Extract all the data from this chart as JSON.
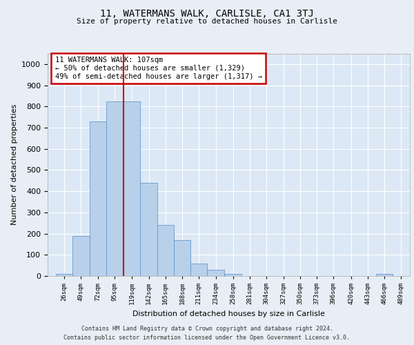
{
  "title": "11, WATERMANS WALK, CARLISLE, CA1 3TJ",
  "subtitle": "Size of property relative to detached houses in Carlisle",
  "xlabel": "Distribution of detached houses by size in Carlisle",
  "ylabel": "Number of detached properties",
  "footer_line1": "Contains HM Land Registry data © Crown copyright and database right 2024.",
  "footer_line2": "Contains public sector information licensed under the Open Government Licence v3.0.",
  "bar_color": "#b8d0ea",
  "bar_edge_color": "#6699cc",
  "background_color": "#dce8f5",
  "fig_background_color": "#e8eef5",
  "grid_color": "#ffffff",
  "annotation_text": "11 WATERMANS WALK: 107sqm\n← 50% of detached houses are smaller (1,329)\n49% of semi-detached houses are larger (1,317) →",
  "property_line_x": 107,
  "categories": [
    "26sqm",
    "49sqm",
    "72sqm",
    "95sqm",
    "119sqm",
    "142sqm",
    "165sqm",
    "188sqm",
    "211sqm",
    "234sqm",
    "258sqm",
    "281sqm",
    "304sqm",
    "327sqm",
    "350sqm",
    "373sqm",
    "396sqm",
    "420sqm",
    "443sqm",
    "466sqm",
    "489sqm"
  ],
  "bin_centers": [
    26,
    49,
    72,
    95,
    119,
    142,
    165,
    188,
    211,
    234,
    258,
    281,
    304,
    327,
    350,
    373,
    396,
    420,
    443,
    466,
    489
  ],
  "values": [
    10,
    190,
    730,
    825,
    825,
    440,
    240,
    170,
    60,
    30,
    10,
    0,
    0,
    0,
    0,
    0,
    0,
    0,
    0,
    10,
    0
  ],
  "bin_width": 23,
  "ylim": [
    0,
    1050
  ],
  "yticks": [
    0,
    100,
    200,
    300,
    400,
    500,
    600,
    700,
    800,
    900,
    1000
  ],
  "xlim_left": 3,
  "xlim_right": 501
}
